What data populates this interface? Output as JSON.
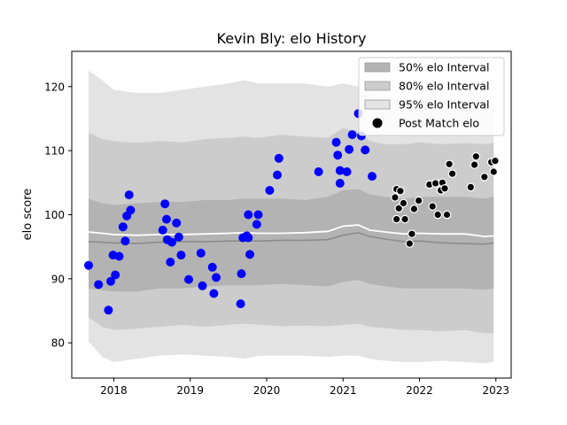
{
  "chart_data": {
    "type": "scatter",
    "title": "Kevin Bly: elo History",
    "xlabel": "",
    "ylabel": "elo score",
    "xlim": [
      2017.45,
      2023.2
    ],
    "ylim": [
      74.5,
      125.5
    ],
    "x_ticks": [
      2018,
      2019,
      2020,
      2021,
      2022,
      2023
    ],
    "x_tick_labels": [
      "2018",
      "2019",
      "2020",
      "2021",
      "2022",
      "2023"
    ],
    "y_ticks": [
      80,
      90,
      100,
      110,
      120
    ],
    "y_tick_labels": [
      "80",
      "90",
      "100",
      "110",
      "120"
    ],
    "grid": false,
    "legend_position": "top-right",
    "colors": {
      "band50": "#b3b3b3",
      "band80": "#cccccc",
      "band95": "#e3e3e3",
      "median": "#8c8c8c",
      "mean": "#ffffff",
      "past_points": "#0000ff",
      "future_points": "#000000",
      "future_edge": "#ffffff"
    },
    "legend": [
      {
        "label": "50% elo Interval",
        "kind": "band50"
      },
      {
        "label": "80% elo Interval",
        "kind": "band80"
      },
      {
        "label": "95% elo Interval",
        "kind": "band95"
      },
      {
        "label": "Post Match elo",
        "kind": "point"
      }
    ],
    "bands": {
      "x": [
        2017.67,
        2017.85,
        2018.0,
        2018.3,
        2018.6,
        2018.9,
        2019.2,
        2019.5,
        2019.7,
        2019.9,
        2020.2,
        2020.5,
        2020.8,
        2021.0,
        2021.2,
        2021.35,
        2021.55,
        2021.8,
        2022.0,
        2022.3,
        2022.6,
        2022.85,
        2022.97
      ],
      "p95_high": [
        122.5,
        121.0,
        119.5,
        119.0,
        119.0,
        119.5,
        120.0,
        120.5,
        121.0,
        120.5,
        120.5,
        120.5,
        120.0,
        120.5,
        120.0,
        118.8,
        118.5,
        118.2,
        118.0,
        118.2,
        118.0,
        118.2,
        118.3
      ],
      "p80_high": [
        112.8,
        111.8,
        111.5,
        111.2,
        111.5,
        111.3,
        111.8,
        112.0,
        112.2,
        112.0,
        112.5,
        112.2,
        112.0,
        113.5,
        113.0,
        111.5,
        111.0,
        111.0,
        111.3,
        111.0,
        111.2,
        111.0,
        111.2
      ],
      "p50_high": [
        102.5,
        101.8,
        101.5,
        101.8,
        102.0,
        102.0,
        102.3,
        102.3,
        102.5,
        102.5,
        102.5,
        102.3,
        102.8,
        103.8,
        104.0,
        103.2,
        102.8,
        102.5,
        102.8,
        102.8,
        102.8,
        102.5,
        102.8
      ],
      "mean": [
        97.3,
        97.1,
        96.9,
        96.8,
        96.9,
        96.9,
        97.0,
        97.1,
        97.2,
        97.1,
        97.1,
        97.2,
        97.4,
        98.2,
        98.4,
        97.6,
        97.3,
        97.0,
        97.1,
        97.0,
        97.0,
        96.6,
        96.7
      ],
      "median": [
        95.8,
        95.7,
        95.6,
        95.5,
        95.7,
        95.8,
        95.8,
        95.9,
        95.9,
        95.9,
        96.0,
        96.0,
        96.1,
        96.8,
        97.2,
        96.6,
        96.2,
        95.8,
        95.9,
        95.6,
        95.5,
        95.4,
        95.6
      ],
      "p50_low": [
        88.5,
        88.2,
        88.0,
        88.0,
        88.5,
        88.5,
        88.8,
        89.0,
        89.0,
        89.0,
        89.2,
        89.0,
        88.8,
        89.5,
        89.8,
        89.2,
        88.8,
        88.5,
        88.5,
        88.5,
        88.5,
        88.3,
        88.5
      ],
      "p80_low": [
        84.0,
        82.5,
        82.0,
        82.2,
        82.5,
        82.8,
        82.5,
        82.8,
        83.0,
        82.8,
        82.6,
        82.7,
        82.6,
        82.8,
        83.0,
        82.5,
        82.3,
        82.0,
        82.0,
        81.8,
        82.0,
        81.5,
        81.5
      ],
      "p95_low": [
        80.2,
        77.8,
        77.0,
        77.5,
        78.0,
        78.2,
        78.0,
        77.8,
        77.5,
        78.0,
        78.0,
        78.0,
        77.8,
        78.0,
        78.0,
        77.5,
        77.2,
        77.0,
        77.0,
        77.2,
        77.0,
        76.8,
        77.0
      ]
    },
    "series": [
      {
        "name": "Post Match elo",
        "kind": "past",
        "points": [
          [
            2017.67,
            92.1
          ],
          [
            2017.8,
            89.1
          ],
          [
            2017.93,
            85.1
          ],
          [
            2017.96,
            89.6
          ],
          [
            2017.99,
            93.7
          ],
          [
            2018.02,
            90.6
          ],
          [
            2018.07,
            93.5
          ],
          [
            2018.12,
            98.1
          ],
          [
            2018.15,
            95.9
          ],
          [
            2018.17,
            99.8
          ],
          [
            2018.2,
            103.1
          ],
          [
            2018.22,
            100.7
          ],
          [
            2018.64,
            97.6
          ],
          [
            2018.67,
            101.7
          ],
          [
            2018.69,
            99.3
          ],
          [
            2018.7,
            96.1
          ],
          [
            2018.74,
            92.6
          ],
          [
            2018.76,
            95.7
          ],
          [
            2018.82,
            98.7
          ],
          [
            2018.85,
            96.5
          ],
          [
            2018.88,
            93.7
          ],
          [
            2018.98,
            89.9
          ],
          [
            2019.14,
            94.0
          ],
          [
            2019.16,
            88.9
          ],
          [
            2019.29,
            91.8
          ],
          [
            2019.31,
            87.7
          ],
          [
            2019.34,
            90.2
          ],
          [
            2019.66,
            86.1
          ],
          [
            2019.67,
            90.8
          ],
          [
            2019.69,
            96.4
          ],
          [
            2019.74,
            96.7
          ],
          [
            2019.76,
            96.4
          ],
          [
            2019.78,
            93.8
          ],
          [
            2019.76,
            100.0
          ],
          [
            2019.87,
            98.5
          ],
          [
            2019.89,
            100.0
          ],
          [
            2020.04,
            103.8
          ],
          [
            2020.14,
            106.2
          ],
          [
            2020.16,
            108.8
          ],
          [
            2020.68,
            106.7
          ],
          [
            2020.91,
            111.3
          ],
          [
            2020.93,
            109.3
          ],
          [
            2020.96,
            106.9
          ],
          [
            2020.96,
            104.9
          ],
          [
            2021.05,
            106.7
          ],
          [
            2021.08,
            110.2
          ],
          [
            2021.12,
            112.5
          ],
          [
            2021.2,
            115.8
          ],
          [
            2021.24,
            112.3
          ],
          [
            2021.29,
            110.1
          ],
          [
            2021.38,
            106.0
          ]
        ]
      },
      {
        "name": "Post Match elo",
        "kind": "future",
        "points": [
          [
            2021.68,
            102.7
          ],
          [
            2021.7,
            104.0
          ],
          [
            2021.73,
            101.0
          ],
          [
            2021.75,
            103.7
          ],
          [
            2021.79,
            101.8
          ],
          [
            2021.81,
            99.3
          ],
          [
            2021.87,
            95.5
          ],
          [
            2021.9,
            97.0
          ],
          [
            2021.93,
            100.9
          ],
          [
            2021.99,
            102.2
          ],
          [
            2021.7,
            99.3
          ],
          [
            2022.13,
            104.7
          ],
          [
            2022.17,
            101.3
          ],
          [
            2022.21,
            104.9
          ],
          [
            2022.24,
            100.0
          ],
          [
            2022.28,
            103.8
          ],
          [
            2022.3,
            105.0
          ],
          [
            2022.33,
            104.1
          ],
          [
            2022.36,
            100.0
          ],
          [
            2022.39,
            107.9
          ],
          [
            2022.43,
            106.4
          ],
          [
            2022.67,
            104.3
          ],
          [
            2022.72,
            107.8
          ],
          [
            2022.74,
            109.1
          ],
          [
            2022.85,
            105.9
          ],
          [
            2022.94,
            108.2
          ],
          [
            2022.97,
            106.7
          ],
          [
            2022.99,
            108.4
          ]
        ]
      }
    ]
  }
}
